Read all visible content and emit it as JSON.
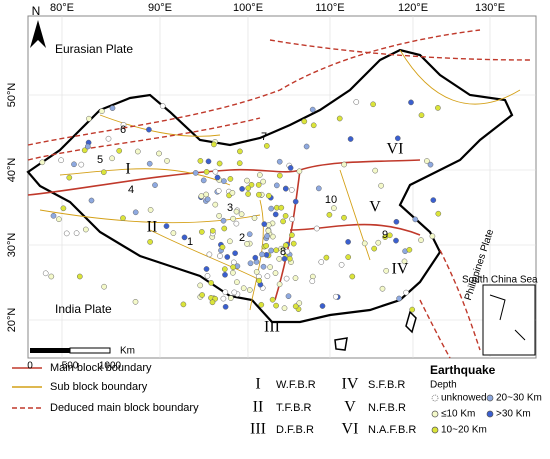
{
  "map": {
    "lon_labels": [
      "80°E",
      "90°E",
      "100°E",
      "110°E",
      "120°E",
      "130°E"
    ],
    "lat_labels": [
      "50°N",
      "40°N",
      "30°N",
      "20°N"
    ],
    "north": "N",
    "places": [
      "Eurasian Plate",
      "India Plate",
      "South China Sea",
      "Philippines Plate"
    ],
    "regions": [
      "I",
      "II",
      "III",
      "IV",
      "V",
      "VI"
    ],
    "faults": [
      "1",
      "2",
      "3",
      "4",
      "5",
      "6",
      "7",
      "8",
      "9",
      "10"
    ],
    "scale": [
      "0",
      "500",
      "1000",
      "Km"
    ]
  },
  "legend": {
    "lines": [
      "Main block boundary",
      "Sub block boundary",
      "Deduced main block boundary"
    ],
    "regions": [
      {
        "numeral": "I",
        "name": "W.F.B.R"
      },
      {
        "numeral": "II",
        "name": "T.F.B.R"
      },
      {
        "numeral": "III",
        "name": "D.F.B.R"
      },
      {
        "numeral": "IV",
        "name": "S.F.B.R"
      },
      {
        "numeral": "V",
        "name": "N.F.B.R"
      },
      {
        "numeral": "VI",
        "name": "N.A.F.B.R"
      }
    ],
    "title": "Earthquake",
    "subtitle": "Depth",
    "depths": [
      "unknowed",
      "≤10 Km",
      "10~20 Km",
      "20~30 Km",
      ">30 Km"
    ]
  }
}
